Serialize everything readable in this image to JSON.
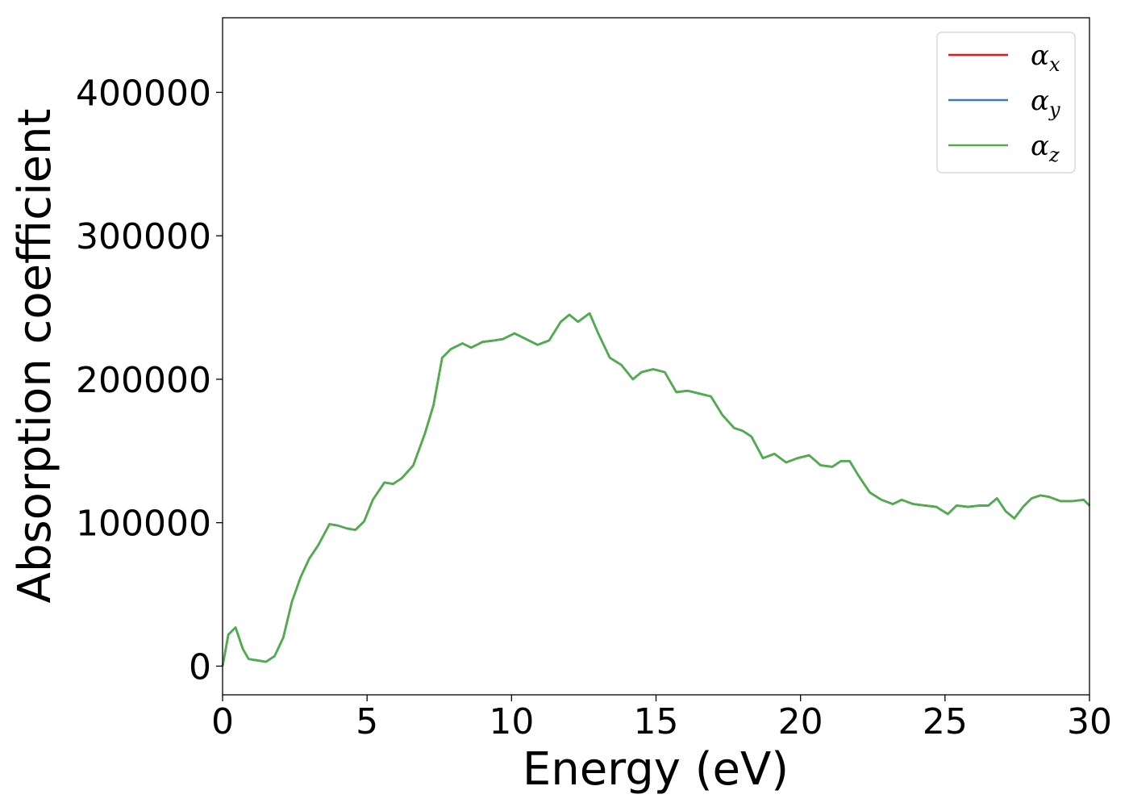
{
  "chart_data": {
    "type": "line",
    "xlabel": "Energy (eV)",
    "ylabel": "Absorption coefficient",
    "xlim": [
      0,
      30
    ],
    "ylim": [
      -20000,
      452000
    ],
    "xticks": [
      0,
      5,
      10,
      15,
      20,
      25,
      30
    ],
    "yticks": [
      0,
      100000,
      200000,
      300000,
      400000
    ],
    "xtick_labels": [
      "0",
      "5",
      "10",
      "15",
      "20",
      "25",
      "30"
    ],
    "ytick_labels": [
      "0",
      "100000",
      "200000",
      "300000",
      "400000"
    ],
    "grid": false,
    "legend_position": "top-right",
    "x": [
      0,
      0.2,
      0.45,
      0.7,
      0.9,
      1.2,
      1.5,
      1.8,
      2.1,
      2.4,
      2.7,
      3.0,
      3.3,
      3.7,
      4.0,
      4.3,
      4.6,
      4.9,
      5.2,
      5.6,
      5.9,
      6.2,
      6.6,
      7.0,
      7.3,
      7.6,
      7.9,
      8.3,
      8.6,
      9.0,
      9.4,
      9.7,
      10.1,
      10.5,
      10.9,
      11.3,
      11.7,
      12.0,
      12.3,
      12.7,
      13.0,
      13.4,
      13.8,
      14.2,
      14.5,
      14.9,
      15.3,
      15.7,
      16.1,
      16.5,
      16.9,
      17.3,
      17.7,
      18.0,
      18.3,
      18.7,
      19.1,
      19.5,
      19.9,
      20.3,
      20.7,
      21.1,
      21.4,
      21.7,
      22.0,
      22.4,
      22.8,
      23.2,
      23.5,
      23.9,
      24.3,
      24.7,
      25.1,
      25.4,
      25.8,
      26.2,
      26.5,
      26.8,
      27.1,
      27.4,
      27.7,
      28.0,
      28.3,
      28.6,
      29.0,
      29.4,
      29.8,
      30.0
    ],
    "series": [
      {
        "name": "α_x",
        "color": "#e41a1c",
        "values": [
          0,
          22000,
          27000,
          12000,
          5000,
          4000,
          3000,
          7000,
          20000,
          45000,
          62000,
          75000,
          84000,
          99000,
          98000,
          96000,
          95000,
          101000,
          116000,
          128000,
          127000,
          131000,
          140000,
          162000,
          182000,
          215000,
          221000,
          225000,
          222000,
          226000,
          227000,
          228000,
          232000,
          228000,
          224000,
          227000,
          240000,
          245000,
          240000,
          246000,
          232000,
          215000,
          210000,
          200000,
          205000,
          207000,
          205000,
          191000,
          192000,
          190000,
          188000,
          175000,
          166000,
          164000,
          160000,
          145000,
          148000,
          142000,
          145000,
          147000,
          140000,
          139000,
          143000,
          143000,
          133000,
          121000,
          116000,
          113000,
          116000,
          113000,
          112000,
          111000,
          106000,
          112000,
          111000,
          112000,
          112000,
          117000,
          108000,
          103000,
          111000,
          117000,
          119000,
          118000,
          115000,
          115000,
          116000,
          112000
        ]
      },
      {
        "name": "α_y",
        "color": "#377eb8",
        "values": [
          0,
          22000,
          27000,
          12000,
          5000,
          4000,
          3000,
          7000,
          20000,
          45000,
          62000,
          75000,
          84000,
          99000,
          98000,
          96000,
          95000,
          101000,
          116000,
          128000,
          127000,
          131000,
          140000,
          162000,
          182000,
          215000,
          221000,
          225000,
          222000,
          226000,
          227000,
          228000,
          232000,
          228000,
          224000,
          227000,
          240000,
          245000,
          240000,
          246000,
          232000,
          215000,
          210000,
          200000,
          205000,
          207000,
          205000,
          191000,
          192000,
          190000,
          188000,
          175000,
          166000,
          164000,
          160000,
          145000,
          148000,
          142000,
          145000,
          147000,
          140000,
          139000,
          143000,
          143000,
          133000,
          121000,
          116000,
          113000,
          116000,
          113000,
          112000,
          111000,
          106000,
          112000,
          111000,
          112000,
          112000,
          117000,
          108000,
          103000,
          111000,
          117000,
          119000,
          118000,
          115000,
          115000,
          116000,
          112000
        ]
      },
      {
        "name": "α_z",
        "color": "#4daf4a",
        "values": [
          0,
          22000,
          27000,
          12000,
          5000,
          4000,
          3000,
          7000,
          20000,
          45000,
          62000,
          75000,
          84000,
          99000,
          98000,
          96000,
          95000,
          101000,
          116000,
          128000,
          127000,
          131000,
          140000,
          162000,
          182000,
          215000,
          221000,
          225000,
          222000,
          226000,
          227000,
          228000,
          232000,
          228000,
          224000,
          227000,
          240000,
          245000,
          240000,
          246000,
          232000,
          215000,
          210000,
          200000,
          205000,
          207000,
          205000,
          191000,
          192000,
          190000,
          188000,
          175000,
          166000,
          164000,
          160000,
          145000,
          148000,
          142000,
          145000,
          147000,
          140000,
          139000,
          143000,
          143000,
          133000,
          121000,
          116000,
          113000,
          116000,
          113000,
          112000,
          111000,
          106000,
          112000,
          111000,
          112000,
          112000,
          117000,
          108000,
          103000,
          111000,
          117000,
          119000,
          118000,
          115000,
          115000,
          116000,
          112000
        ]
      }
    ],
    "legend": [
      {
        "symbol": "α",
        "sub": "x",
        "color": "#e41a1c"
      },
      {
        "symbol": "α",
        "sub": "y",
        "color": "#377eb8"
      },
      {
        "symbol": "α",
        "sub": "z",
        "color": "#4daf4a"
      }
    ]
  }
}
